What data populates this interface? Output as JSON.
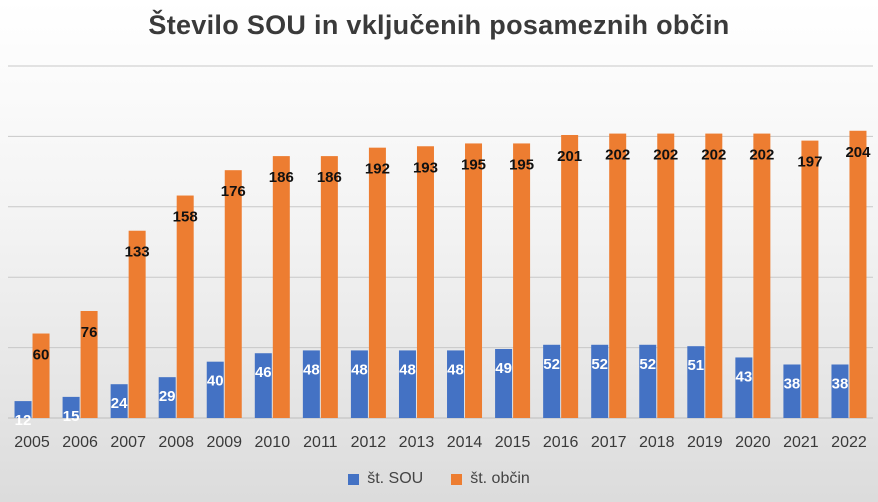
{
  "chart_data": {
    "type": "bar",
    "title": "Število SOU in vključenih posameznih občin",
    "categories": [
      "2005",
      "2006",
      "2007",
      "2008",
      "2009",
      "2010",
      "2011",
      "2012",
      "2013",
      "2014",
      "2015",
      "2016",
      "2017",
      "2018",
      "2019",
      "2020",
      "2021",
      "2022"
    ],
    "series": [
      {
        "name": "št. SOU",
        "color": "#4472c4",
        "values": [
          12,
          15,
          24,
          29,
          40,
          46,
          48,
          48,
          48,
          48,
          49,
          52,
          52,
          52,
          51,
          43,
          38,
          38
        ]
      },
      {
        "name": "št. občin",
        "color": "#ed7d31",
        "values": [
          60,
          76,
          133,
          158,
          176,
          186,
          186,
          192,
          193,
          195,
          195,
          201,
          202,
          202,
          202,
          202,
          197,
          204
        ]
      }
    ],
    "ylim": [
      0,
      250
    ],
    "grid": true,
    "legend": "bottom"
  }
}
